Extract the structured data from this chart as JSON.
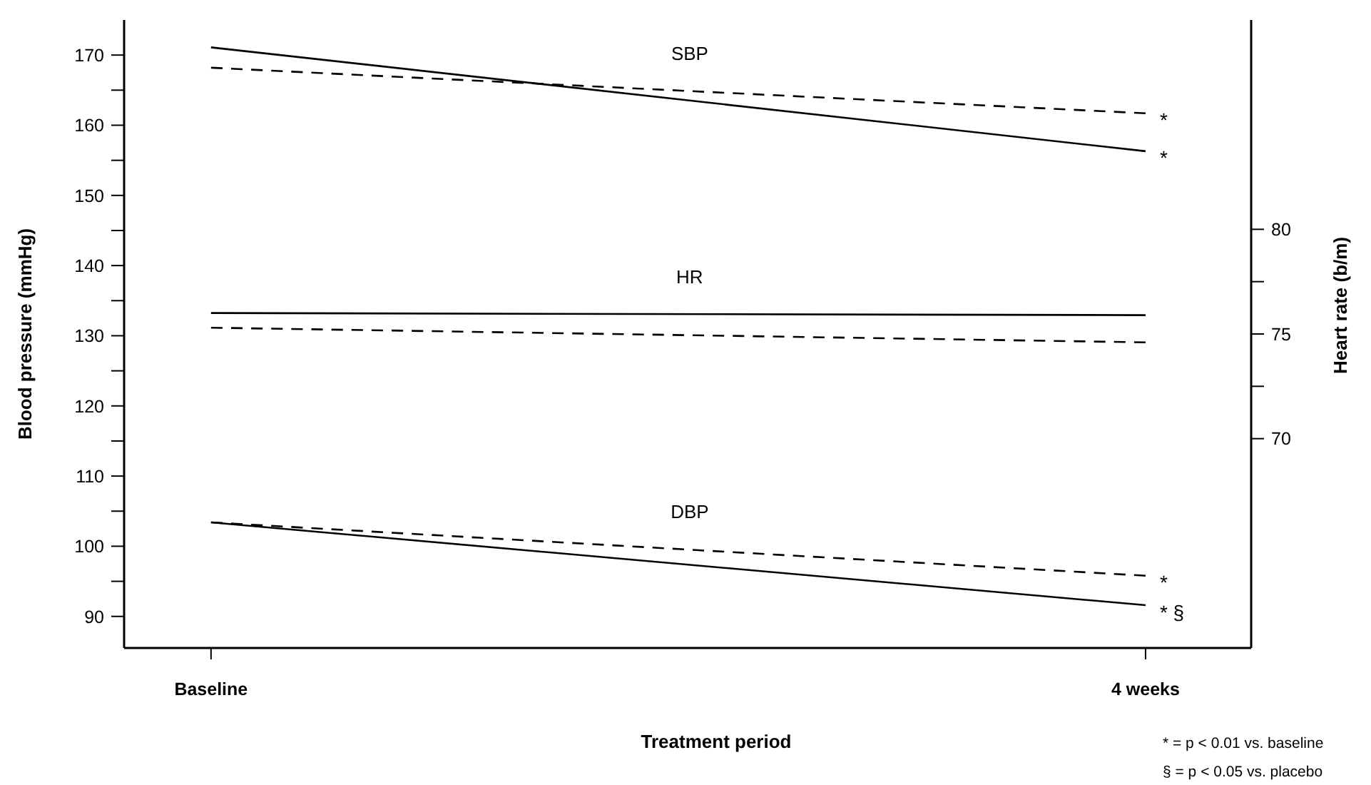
{
  "chart_data": {
    "type": "line",
    "xlabel": "Treatment period",
    "ylabel": "Blood pressure (mmHg)",
    "y2label": "Heart rate (b/m)",
    "categories": [
      "Baseline",
      "4 weeks"
    ],
    "series": [
      {
        "color": "#000000",
        "line_style": "solid",
        "values": [
          171.1,
          156.3
        ]
      },
      {
        "color": "#000000",
        "line_style": "dashed",
        "values": [
          168.2,
          161.7
        ]
      },
      {
        "color": "#000000",
        "line_style": "solid",
        "axis": "y2",
        "values": [
          76.0,
          75.9
        ]
      },
      {
        "color": "#000000",
        "line_style": "dashed",
        "axis": "y2",
        "values": [
          75.3,
          74.6
        ]
      },
      {
        "color": "#000000",
        "line_style": "solid",
        "values": [
          103.4,
          91.6
        ]
      },
      {
        "color": "#000000",
        "line_style": "dashed",
        "values": [
          103.4,
          95.8
        ]
      }
    ],
    "ylim": [
      85.5,
      175
    ],
    "yticks": [
      90,
      {
        "value": 95,
        "label": null
      },
      100,
      {
        "value": 105,
        "label": null
      },
      110,
      {
        "value": 115,
        "label": null
      },
      120,
      {
        "value": 125,
        "label": null
      },
      130,
      {
        "value": 135,
        "label": null
      },
      140,
      {
        "value": 145,
        "label": null
      },
      150,
      {
        "value": 155,
        "label": null
      },
      160,
      {
        "value": 165,
        "label": null
      },
      170
    ],
    "y2lim": [
      60,
      90
    ],
    "y2ticks": [
      70,
      {
        "value": 72.5,
        "label": null
      },
      75,
      {
        "value": 77.5,
        "label": null
      },
      80
    ],
    "grid": false,
    "marker": "none",
    "annotations": [
      "SBP",
      "HR",
      "DBP",
      {
        "text": "*",
        "x": "4 weeks",
        "y": 161.7
      },
      {
        "text": "*",
        "x": "4 weeks",
        "y": 156.3
      },
      {
        "text": "*",
        "x": "4 weeks",
        "y": 95.8
      },
      {
        "text": "* §",
        "x": "4 weeks",
        "y": 91.6
      },
      "* = p < 0.01 vs. baseline",
      "§ = p < 0.05 vs. placebo"
    ]
  }
}
